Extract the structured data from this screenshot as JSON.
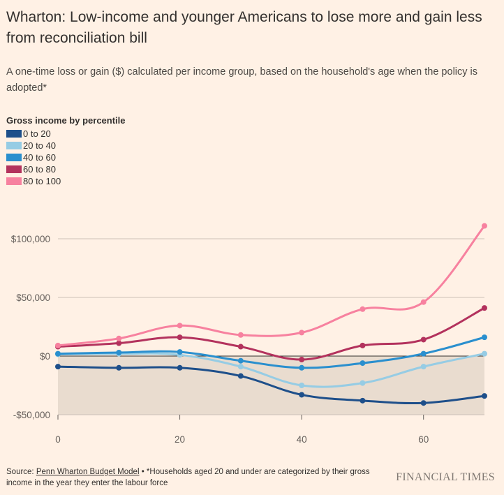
{
  "title": "Wharton: Low-income and younger Americans to lose more and gain less from reconciliation bill",
  "subtitle": "A one-time loss or gain ($) calculated per income group, based on the household's age when the policy is adopted*",
  "legend_title": "Gross income by percentile",
  "footer": {
    "source_prefix": "Source: ",
    "source_link": "Penn Wharton Budget Model",
    "note": " • *Households aged 20 and under are categorized by their gross income in the year they enter the labour force"
  },
  "brand": "FINANCIAL TIMES",
  "chart_data": {
    "type": "line",
    "x": [
      0,
      10,
      20,
      30,
      40,
      50,
      60,
      70
    ],
    "xticks": [
      0,
      20,
      40,
      60
    ],
    "xtick_labels": [
      "0",
      "20",
      "40",
      "60"
    ],
    "yticks": [
      -50000,
      0,
      50000,
      100000
    ],
    "ytick_labels": [
      "-$50,000",
      "$0",
      "$50,000",
      "$100,000"
    ],
    "xlim": [
      0,
      70
    ],
    "ylim": [
      -50000,
      100000
    ],
    "grid": true,
    "legend_position": "top-left",
    "series": [
      {
        "name": "0 to 20",
        "color": "#1e4f8a",
        "values": [
          -9000,
          -10000,
          -10000,
          -17000,
          -33000,
          -38000,
          -40000,
          -34000
        ]
      },
      {
        "name": "20 to 40",
        "color": "#96cce4",
        "values": [
          1500,
          2000,
          1000,
          -9000,
          -25000,
          -23000,
          -9000,
          2000
        ]
      },
      {
        "name": "40 to 60",
        "color": "#2a8fce",
        "values": [
          2000,
          3000,
          3500,
          -4000,
          -10000,
          -6000,
          2000,
          16000
        ]
      },
      {
        "name": "60 to 80",
        "color": "#b3325d",
        "values": [
          8000,
          11000,
          16000,
          8000,
          -3000,
          9000,
          14000,
          41000
        ]
      },
      {
        "name": "80 to 100",
        "color": "#f7819f",
        "values": [
          9000,
          15000,
          26000,
          18000,
          20000,
          40000,
          46000,
          111000
        ]
      }
    ]
  }
}
